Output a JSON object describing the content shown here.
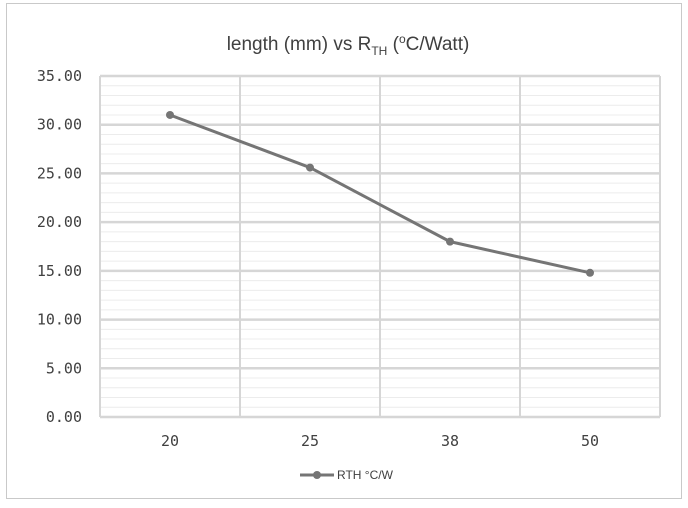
{
  "chart_data": {
    "type": "line",
    "title": {
      "main": "length (mm) vs R",
      "sub": "TH",
      "open": " (",
      "sup": "o",
      "rest": "C/Watt)"
    },
    "categories": [
      "20",
      "25",
      "38",
      "50"
    ],
    "series": [
      {
        "name": "RTH °C/W",
        "values": [
          31.0,
          25.6,
          18.0,
          14.8
        ],
        "color": "#757575"
      }
    ],
    "y_ticks": [
      "0.00",
      "5.00",
      "10.00",
      "15.00",
      "20.00",
      "25.00",
      "30.00",
      "35.00"
    ],
    "ylim": [
      0,
      35
    ],
    "y_major_step": 5,
    "y_minor_step": 1,
    "grid": true,
    "legend_position": "bottom",
    "colors": {
      "major_grid": "#d6d6d6",
      "minor_grid": "#ececec",
      "line": "#757575",
      "text": "#404040"
    }
  }
}
